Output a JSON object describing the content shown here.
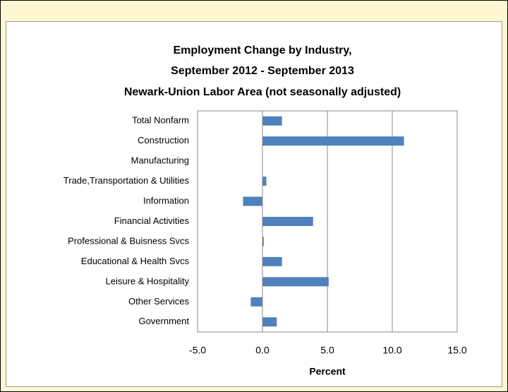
{
  "chart_data": {
    "type": "barh",
    "title": [
      "Employment Change by Industry,",
      "September 2012 - September 2013",
      "Newark-Union Labor Area (not seasonally adjusted)"
    ],
    "categories": [
      "Total Nonfarm",
      "Construction",
      "Manufacturing",
      "Trade,Transportation & Utilities",
      "Information",
      "Financial Activities",
      "Professional & Buisness Svcs",
      "Educational & Health Svcs",
      "Leisure & Hospitality",
      "Other Services",
      "Government"
    ],
    "values": [
      1.5,
      10.9,
      0,
      0.3,
      -1.5,
      3.9,
      0.1,
      1.5,
      5.1,
      -0.9,
      1.1
    ],
    "color": "#4f81bd",
    "xlabel": "Percent",
    "xlim": [
      -5,
      15
    ],
    "xticks": [
      {
        "value": -5,
        "label": "-5.0"
      },
      {
        "value": 0,
        "label": "0.0"
      },
      {
        "value": 5,
        "label": "5.0"
      },
      {
        "value": 10,
        "label": "10.0"
      },
      {
        "value": 15,
        "label": "15.0"
      }
    ],
    "grid": true
  }
}
